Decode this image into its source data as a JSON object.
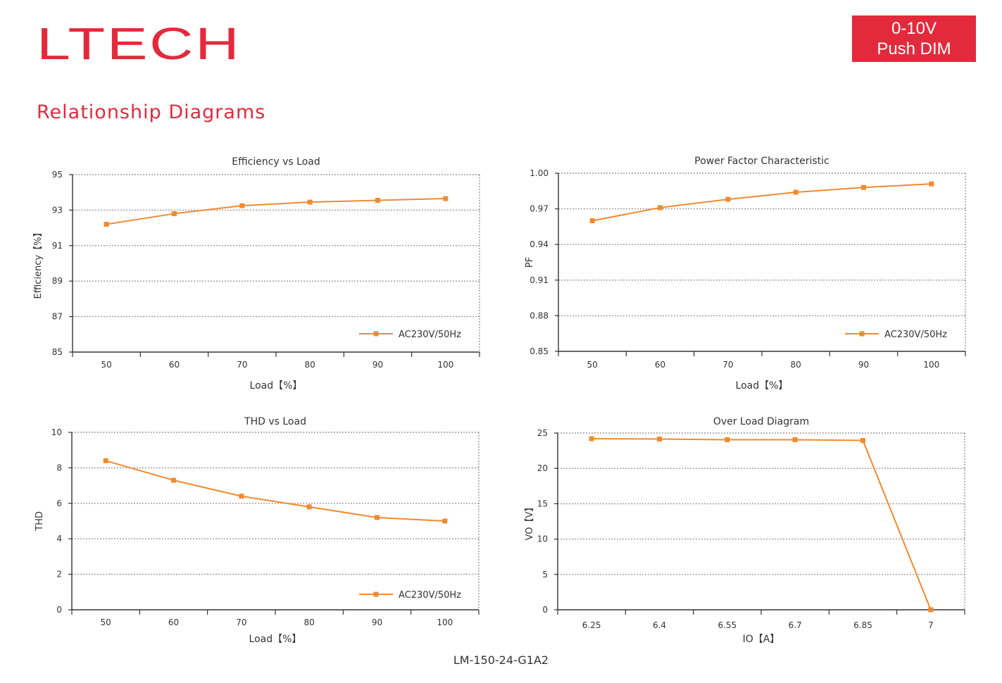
{
  "brand": {
    "logo_text": "LTECH",
    "badge_line1": "0-10V",
    "badge_line2": "Push DIM"
  },
  "section_title": "Relationship Diagrams",
  "footer": {
    "model": "LM-150-24-G1A2"
  },
  "colors": {
    "accent": "#e32a3d",
    "series": "#f08a30",
    "axis": "#333333",
    "grid": "#999999"
  },
  "chart_data": [
    {
      "type": "line",
      "title": "Efficiency vs Load",
      "xlabel": "Load【%】",
      "ylabel": "Efficiency【%】",
      "x": [
        50,
        60,
        70,
        80,
        90,
        100
      ],
      "xticks": [
        "50",
        "60",
        "70",
        "80",
        "90",
        "100"
      ],
      "ylim": [
        85,
        95
      ],
      "yticks": [
        "85",
        "87",
        "89",
        "91",
        "93",
        "95"
      ],
      "series": [
        {
          "name": "AC230V/50Hz",
          "values": [
            92.2,
            92.8,
            93.25,
            93.45,
            93.55,
            93.65
          ]
        }
      ],
      "grid": true,
      "legend": "bottom-right"
    },
    {
      "type": "line",
      "title": "Power Factor Characteristic",
      "xlabel": "Load【%】",
      "ylabel": "PF",
      "x": [
        50,
        60,
        70,
        80,
        90,
        100
      ],
      "xticks": [
        "50",
        "60",
        "70",
        "80",
        "90",
        "100"
      ],
      "ylim": [
        0.85,
        1.0
      ],
      "yticks": [
        "0.85",
        "0.88",
        "0.91",
        "0.94",
        "0.97",
        "1.00"
      ],
      "series": [
        {
          "name": "AC230V/50Hz",
          "values": [
            0.96,
            0.971,
            0.978,
            0.984,
            0.988,
            0.991
          ]
        }
      ],
      "grid": true,
      "legend": "bottom-right"
    },
    {
      "type": "line",
      "title": "THD vs Load",
      "xlabel": "Load【%】",
      "ylabel": "THD",
      "x": [
        50,
        60,
        70,
        80,
        90,
        100
      ],
      "xticks": [
        "50",
        "60",
        "70",
        "80",
        "90",
        "100"
      ],
      "ylim": [
        0,
        10
      ],
      "yticks": [
        "0",
        "2",
        "4",
        "6",
        "8",
        "10"
      ],
      "series": [
        {
          "name": "AC230V/50Hz",
          "values": [
            8.4,
            7.3,
            6.4,
            5.8,
            5.2,
            5.0
          ]
        }
      ],
      "grid": true,
      "legend": "bottom-right"
    },
    {
      "type": "line",
      "title": "Over Load Diagram",
      "xlabel": "IO【A】",
      "ylabel": "VO【V】",
      "x": [
        6.25,
        6.4,
        6.55,
        6.7,
        6.85,
        7
      ],
      "xticks": [
        "6.25",
        "6.4",
        "6.55",
        "6.7",
        "6.85",
        "7"
      ],
      "ylim": [
        0,
        25
      ],
      "yticks": [
        "0",
        "5",
        "10",
        "15",
        "20",
        "25"
      ],
      "series": [
        {
          "name": "",
          "values": [
            24.2,
            24.15,
            24.05,
            24.05,
            23.95,
            0
          ]
        }
      ],
      "grid": true,
      "legend": "none"
    }
  ]
}
